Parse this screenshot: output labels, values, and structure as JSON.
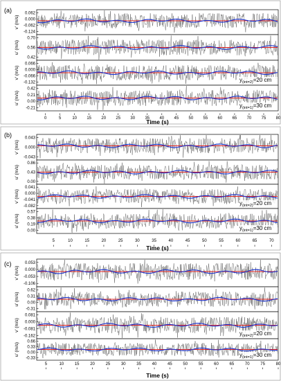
{
  "chart_data": [
    {
      "type": "line",
      "panel_label": "(a)",
      "x_ticks": [
        "0",
        "5",
        "10",
        "15",
        "20",
        "25",
        "30",
        "35",
        "40",
        "45",
        "50",
        "55",
        "60",
        "65",
        "70",
        "75",
        "80"
      ],
      "xlim": [
        -3,
        80
      ],
      "xlabel": "Time (s)",
      "series_colors": {
        "raw": "#333333",
        "mean": "#e02020",
        "smooth": "#1830d0"
      },
      "subplots": [
        {
          "ylabel": "v' (m/s)",
          "y_ticks": [
            "0.062",
            "0.000",
            "-0.062",
            "-0.124"
          ],
          "mean_line": 0.0,
          "amplitude": 0.05
        },
        {
          "ylabel": "u' (m/s)",
          "y_ticks": [
            "0.70",
            "0.56",
            "0.42"
          ],
          "mean_line": 0.56,
          "amplitude": 0.09
        },
        {
          "ylabel": "v' (m/s)",
          "y_ticks": [
            "0.066",
            "0.000",
            "-0.066",
            "-0.132"
          ],
          "mean_line": 0.0,
          "amplitude": 0.05,
          "annotation": "20 cm",
          "annotation_sub": "(int=2)"
        },
        {
          "ylabel": "u' (m/s)",
          "y_ticks": [
            "0.42",
            "0.21",
            "0.00",
            "-0.21"
          ],
          "mean_line": 0.21,
          "amplitude": 0.15,
          "annotation": "30 cm",
          "annotation_sub": "(int=1)"
        }
      ]
    },
    {
      "type": "line",
      "panel_label": "(b)",
      "x_ticks": [
        "5",
        "10",
        "15",
        "20",
        "25",
        "30",
        "35",
        "40",
        "45",
        "50",
        "55",
        "60",
        "65",
        "70"
      ],
      "xlim": [
        0,
        72
      ],
      "xlabel": "Time (s)",
      "series_colors": {
        "raw": "#333333",
        "mean": "#e02020",
        "smooth": "#1830d0"
      },
      "subplots": [
        {
          "ylabel": "v' (m/s)",
          "y_ticks": [
            "0.043",
            "0.000",
            "-0.043"
          ],
          "mean_line": 0.0,
          "amplitude": 0.035
        },
        {
          "ylabel": "u' (m/s)",
          "y_ticks": [
            "0.86",
            "0.43",
            "0.00"
          ],
          "mean_line": 0.6,
          "amplitude": 0.2
        },
        {
          "ylabel": "v' (m/s)",
          "y_ticks": [
            "0.041",
            "0.000",
            "-0.041",
            "-0.082"
          ],
          "mean_line": 0.0,
          "amplitude": 0.035,
          "annotation": "20 cm",
          "annotation_sub": "(int=2)"
        },
        {
          "ylabel": "u' (m/s)",
          "y_ticks": [
            "0.57",
            "0.38",
            "0.19",
            "0.00"
          ],
          "mean_line": 0.45,
          "amplitude": 0.12,
          "annotation": "30 cm",
          "annotation_sub": "(int=1)"
        }
      ]
    },
    {
      "type": "line",
      "panel_label": "(c)",
      "x_ticks": [
        "5",
        "10",
        "15",
        "20",
        "25",
        "30",
        "35",
        "40",
        "45",
        "50",
        "55",
        "60",
        "65",
        "70",
        "75",
        "80"
      ],
      "xlim": [
        2,
        80
      ],
      "xlabel": "Time (s)",
      "series_colors": {
        "raw": "#333333",
        "mean": "#e02020",
        "smooth": "#1830d0"
      },
      "subplots": [
        {
          "ylabel": "v' (m/s)",
          "y_ticks": [
            "0.053",
            "0.000",
            "-0.053",
            "-0.106"
          ],
          "mean_line": 0.0,
          "amplitude": 0.03
        },
        {
          "ylabel": "u' (m/s)",
          "y_ticks": [
            "0.62",
            "0.31",
            "0.00",
            "-0.31"
          ],
          "mean_line": 0.31,
          "amplitude": 0.06
        },
        {
          "ylabel": "v' (m/s)",
          "y_ticks": [
            "0.081",
            "0.000",
            "-0.081",
            "-0.162"
          ],
          "mean_line": 0.0,
          "amplitude": 0.04,
          "annotation": "20 cm",
          "annotation_sub": "(int=2)"
        },
        {
          "ylabel": "u' (m/s)",
          "y_ticks": [
            "0.66",
            "0.33",
            "0.00",
            "-0.33"
          ],
          "mean_line": 0.33,
          "amplitude": 0.05,
          "annotation": "30 cm",
          "annotation_sub": "(int=1)"
        }
      ]
    }
  ]
}
